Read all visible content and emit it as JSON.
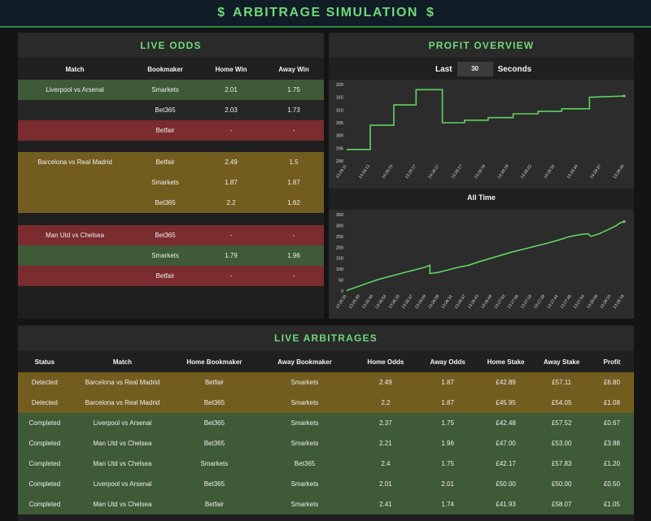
{
  "header": {
    "dollar_icon": "$",
    "title": "ARBITRAGE SIMULATION"
  },
  "live_odds": {
    "title": "LIVE ODDS",
    "columns": [
      "Match",
      "Bookmaker",
      "Home Win",
      "Away Win"
    ],
    "rows": [
      {
        "match": "Liverpool vs Arsenal",
        "bookmaker": "Smarkets",
        "home": "2.01",
        "away": "1.75",
        "color": "green"
      },
      {
        "match": "",
        "bookmaker": "Bet365",
        "home": "2.03",
        "away": "1.73",
        "color": "dark"
      },
      {
        "match": "",
        "bookmaker": "Betfair",
        "home": "-",
        "away": "-",
        "color": "red"
      },
      {
        "match": "Barcelona vs Real Madrid",
        "bookmaker": "Betfair",
        "home": "2.49",
        "away": "1.5",
        "color": "yellow"
      },
      {
        "match": "",
        "bookmaker": "Smarkets",
        "home": "1.87",
        "away": "1.87",
        "color": "yellow"
      },
      {
        "match": "",
        "bookmaker": "Bet365",
        "home": "2.2",
        "away": "1.62",
        "color": "yellow"
      },
      {
        "match": "Man Utd vs Chelsea",
        "bookmaker": "Bet365",
        "home": "-",
        "away": "-",
        "color": "red"
      },
      {
        "match": "",
        "bookmaker": "Smarkets",
        "home": "1.79",
        "away": "1.96",
        "color": "green"
      },
      {
        "match": "",
        "bookmaker": "Betfair",
        "home": "-",
        "away": "-",
        "color": "red"
      }
    ]
  },
  "profit_overview": {
    "title": "PROFIT OVERVIEW",
    "last_label": "Last",
    "seconds_value": "30",
    "seconds_label": "Seconds",
    "all_time_label": "All Time"
  },
  "chart_data": [
    {
      "type": "line",
      "ylim": [
        290,
        320
      ],
      "yticks": [
        290,
        295,
        300,
        305,
        310,
        315,
        320
      ],
      "xticks": [
        "13:28:11",
        "13:28:13",
        "13:28:15",
        "13:28:17",
        "13:28:17",
        "13:28:17",
        "13:28:19",
        "13:28:19",
        "13:28:22",
        "13:28:32",
        "13:28:34",
        "13:28:37",
        "13:28:40"
      ],
      "points": [
        [
          0,
          294.5
        ],
        [
          0.085,
          294.5
        ],
        [
          0.085,
          304
        ],
        [
          0.17,
          304
        ],
        [
          0.17,
          312
        ],
        [
          0.25,
          312
        ],
        [
          0.25,
          318
        ],
        [
          0.345,
          318
        ],
        [
          0.345,
          305
        ],
        [
          0.425,
          305
        ],
        [
          0.425,
          306
        ],
        [
          0.51,
          306
        ],
        [
          0.51,
          307
        ],
        [
          0.6,
          307
        ],
        [
          0.6,
          308.5
        ],
        [
          0.69,
          308.5
        ],
        [
          0.69,
          309.5
        ],
        [
          0.775,
          309.5
        ],
        [
          0.775,
          310.5
        ],
        [
          0.875,
          310.5
        ],
        [
          0.875,
          315
        ],
        [
          1.0,
          315.5
        ]
      ],
      "color": "#5fd45f"
    },
    {
      "type": "line",
      "ylim": [
        0,
        350
      ],
      "yticks": [
        0,
        50,
        100,
        150,
        200,
        250,
        300,
        350
      ],
      "xticks": [
        "13:25:25",
        "13:25:38",
        "13:25:49",
        "13:26:04",
        "13:26:16",
        "13:26:37",
        "13:26:09",
        "13:26:09",
        "13:26:31",
        "13:26:37",
        "13:26:43",
        "13:26:49",
        "13:27:03",
        "13:27:06",
        "13:27:16",
        "13:27:38",
        "13:27:44",
        "13:27:46",
        "13:27:54",
        "13:28:08",
        "13:28:15",
        "13:28:19"
      ],
      "points": [
        [
          0,
          2
        ],
        [
          0.04,
          20
        ],
        [
          0.08,
          38
        ],
        [
          0.12,
          55
        ],
        [
          0.16,
          68
        ],
        [
          0.2,
          82
        ],
        [
          0.24,
          95
        ],
        [
          0.28,
          108
        ],
        [
          0.3,
          118
        ],
        [
          0.3,
          80
        ],
        [
          0.33,
          85
        ],
        [
          0.36,
          95
        ],
        [
          0.4,
          108
        ],
        [
          0.44,
          118
        ],
        [
          0.48,
          135
        ],
        [
          0.52,
          150
        ],
        [
          0.56,
          165
        ],
        [
          0.6,
          180
        ],
        [
          0.64,
          192
        ],
        [
          0.68,
          205
        ],
        [
          0.72,
          218
        ],
        [
          0.76,
          232
        ],
        [
          0.8,
          248
        ],
        [
          0.84,
          258
        ],
        [
          0.87,
          262
        ],
        [
          0.88,
          250
        ],
        [
          0.91,
          262
        ],
        [
          0.94,
          280
        ],
        [
          0.97,
          298
        ],
        [
          0.985,
          312
        ],
        [
          1.0,
          318
        ]
      ],
      "color": "#5fd45f"
    }
  ],
  "live_arbitrages": {
    "title": "LIVE ARBITRAGES",
    "columns": [
      "Status",
      "Match",
      "Home Bookmaker",
      "Away Bookmaker",
      "Home Odds",
      "Away Odds",
      "Home Stake",
      "Away Stake",
      "Profit"
    ],
    "rows": [
      {
        "status": "Detected",
        "match": "Barcelona vs Real Madrid",
        "home_bm": "Betfair",
        "away_bm": "Smarkets",
        "home_odds": "2.49",
        "away_odds": "1.87",
        "home_stake": "£42.89",
        "away_stake": "£57.11",
        "profit": "£6.80",
        "color": "yellow"
      },
      {
        "status": "Detected",
        "match": "Barcelona vs Real Madrid",
        "home_bm": "Bet365",
        "away_bm": "Smarkets",
        "home_odds": "2.2",
        "away_odds": "1.87",
        "home_stake": "£45.95",
        "away_stake": "£54.05",
        "profit": "£1.08",
        "color": "yellow"
      },
      {
        "status": "Completed",
        "match": "Liverpool vs Arsenal",
        "home_bm": "Bet365",
        "away_bm": "Smarkets",
        "home_odds": "2.37",
        "away_odds": "1.75",
        "home_stake": "£42.48",
        "away_stake": "£57.52",
        "profit": "£0.67",
        "color": "green"
      },
      {
        "status": "Completed",
        "match": "Man Utd vs Chelsea",
        "home_bm": "Bet365",
        "away_bm": "Smarkets",
        "home_odds": "2.21",
        "away_odds": "1.96",
        "home_stake": "£47.00",
        "away_stake": "£53.00",
        "profit": "£3.88",
        "color": "green"
      },
      {
        "status": "Completed",
        "match": "Man Utd vs Chelsea",
        "home_bm": "Smarkets",
        "away_bm": "Bet365",
        "home_odds": "2.4",
        "away_odds": "1.75",
        "home_stake": "£42.17",
        "away_stake": "£57.83",
        "profit": "£1.20",
        "color": "green"
      },
      {
        "status": "Completed",
        "match": "Liverpool vs Arsenal",
        "home_bm": "Bet365",
        "away_bm": "Smarkets",
        "home_odds": "2.01",
        "away_odds": "2.01",
        "home_stake": "£50.00",
        "away_stake": "£50.00",
        "profit": "£0.50",
        "color": "green"
      },
      {
        "status": "Completed",
        "match": "Man Utd vs Chelsea",
        "home_bm": "Betfair",
        "away_bm": "Smarkets",
        "home_odds": "2.41",
        "away_odds": "1.74",
        "home_stake": "£41.93",
        "away_stake": "£58.07",
        "profit": "£1.05",
        "color": "green"
      }
    ]
  }
}
